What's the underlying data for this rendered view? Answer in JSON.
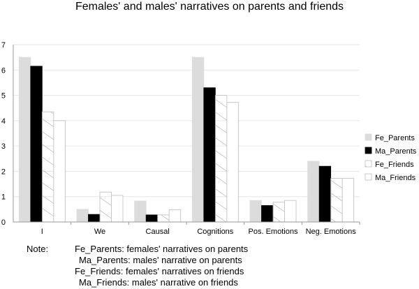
{
  "chart_data": {
    "type": "bar",
    "title": "Females' and males' narratives on parents and friends",
    "xlabel": "",
    "ylabel": "",
    "categories": [
      "I",
      "We",
      "Causal",
      "Cognitions",
      "Pos. Emotions",
      "Neg. Emotions"
    ],
    "ylim": [
      0,
      7
    ],
    "yticks": [
      0,
      1,
      2,
      3,
      4,
      5,
      6,
      7
    ],
    "grid": true,
    "legend_position": "right",
    "series": [
      {
        "name": "Fe_Parents",
        "values": [
          6.5,
          0.5,
          0.83,
          6.5,
          0.85,
          2.4
        ],
        "color": "#dcdcdc",
        "style": "solid"
      },
      {
        "name": "Ma_Parents",
        "values": [
          6.15,
          0.3,
          0.28,
          5.3,
          0.65,
          2.2
        ],
        "color": "#000000",
        "style": "solid"
      },
      {
        "name": "Fe_Friends",
        "values": [
          4.35,
          1.18,
          0.28,
          5.0,
          0.78,
          1.72
        ],
        "color": "#ffffff",
        "style": "hatched"
      },
      {
        "name": "Ma_Friends",
        "values": [
          4.0,
          1.05,
          0.48,
          4.72,
          0.85,
          1.72
        ],
        "color": "#ffffff",
        "style": "plain"
      }
    ]
  },
  "note": {
    "label": "Note:",
    "lines": [
      "Fe_Parents: females' narratives on parents",
      "Ma_Parents: males' narrative on parents",
      "Fe_Friends: females' narratives on friends",
      "Ma_Friends: males' narrative on friends"
    ]
  }
}
